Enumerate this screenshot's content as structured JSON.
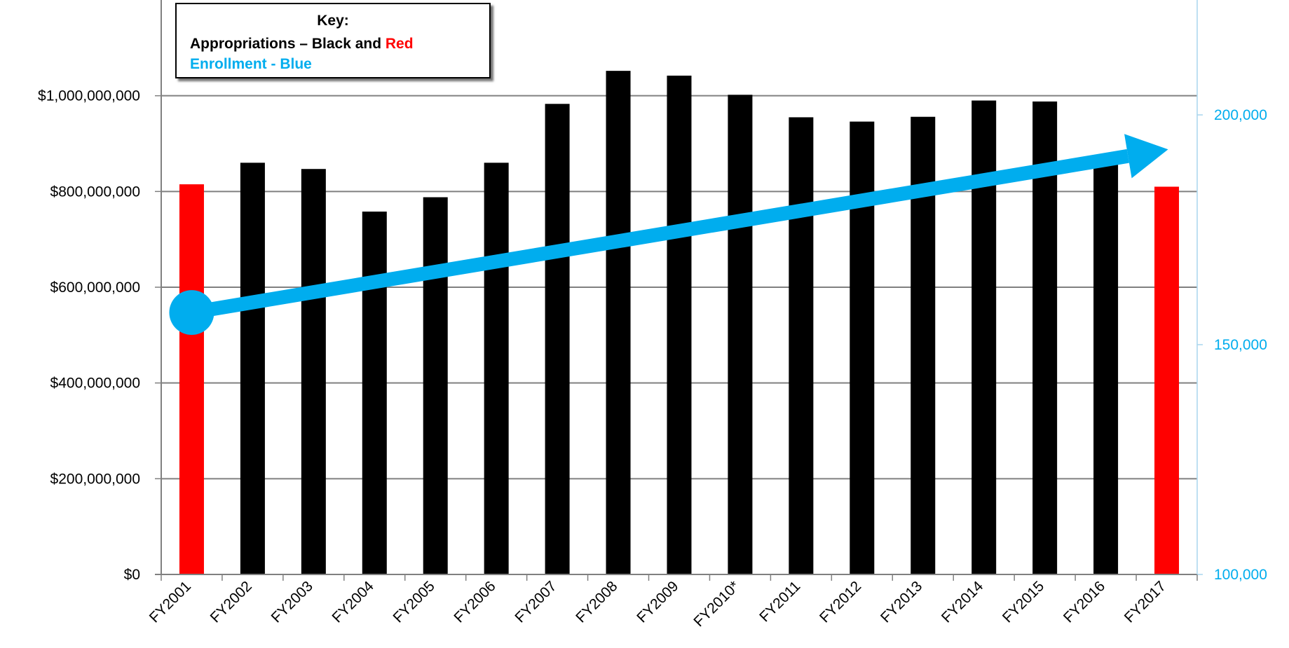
{
  "colors": {
    "appropriations": "#000000",
    "highlight": "#ff0000",
    "enrollment": "#00adee",
    "grid": "#808080"
  },
  "key": {
    "title": "Key:",
    "appropriations_prefix": "Appropriations – Black and ",
    "appropriations_red_word": "Red",
    "enrollment_label": "Enrollment - Blue"
  },
  "chart_data": {
    "type": "bar",
    "categories": [
      "FY2001",
      "FY2002",
      "FY2003",
      "FY2004",
      "FY2005",
      "FY2006",
      "FY2007",
      "FY2008",
      "FY2009",
      "FY2010*",
      "FY2011",
      "FY2012",
      "FY2013",
      "FY2014",
      "FY2015",
      "FY2016",
      "FY2017"
    ],
    "series": [
      {
        "name": "Appropriations",
        "values": [
          815000000,
          860000000,
          847000000,
          758000000,
          788000000,
          860000000,
          983000000,
          1052000000,
          1042000000,
          1002000000,
          955000000,
          946000000,
          956000000,
          990000000,
          988000000,
          876000000,
          810000000
        ],
        "highlighted_categories": [
          "FY2001",
          "FY2017"
        ]
      },
      {
        "name": "Enrollment",
        "type": "arrow",
        "x": [
          "FY2001",
          "FY2017"
        ],
        "values": [
          157000,
          192500
        ]
      }
    ],
    "ylim": [
      0,
      1200000000
    ],
    "y_ticks": [
      "$0",
      "$200,000,000",
      "$400,000,000",
      "$600,000,000",
      "$800,000,000",
      "$1,000,000,000"
    ],
    "y_tick_values": [
      0,
      200000000,
      400000000,
      600000000,
      800000000,
      1000000000
    ],
    "y2lim": [
      100000,
      225000
    ],
    "y2_ticks": [
      "100,000",
      "150,000",
      "200,000"
    ],
    "y2_tick_values": [
      100000,
      150000,
      200000
    ],
    "grid": true
  }
}
